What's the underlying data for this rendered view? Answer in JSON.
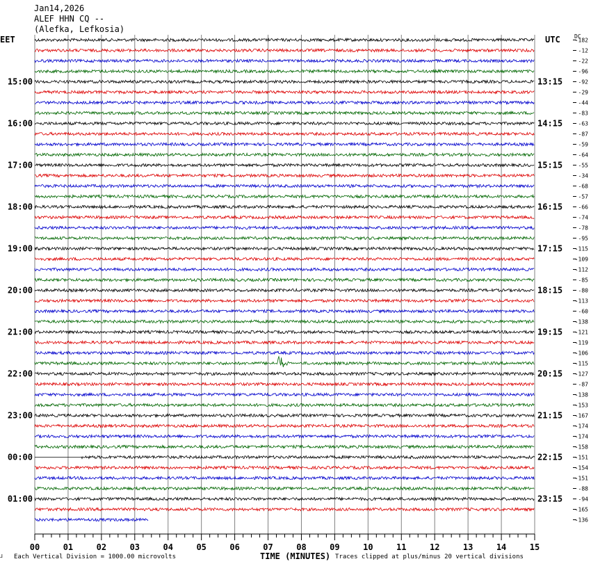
{
  "header": {
    "date": "Jan14,2026",
    "station": "ALEF HHN CQ --",
    "location": "(Alefka, Lefkosia)"
  },
  "labels": {
    "left_zone": "EET",
    "right_zone": "UTC",
    "dc_header": "DC",
    "x_title": "TIME (MINUTES)",
    "scale_note": "Each Vertical Division = 1000.00 microvolts",
    "clip_note": "Traces clipped at plus/minus 20 vertical divisions"
  },
  "colors": {
    "cycle": [
      "#000000",
      "#dd0000",
      "#0000cc",
      "#006600"
    ],
    "grid": "#808080"
  },
  "chart_data": {
    "type": "line",
    "title": "ALEF HHN CQ -- (Alefka, Lefkosia) Jan14,2026",
    "xlabel": "TIME (MINUTES)",
    "xlim": [
      0,
      15
    ],
    "x_ticks": [
      "00",
      "01",
      "02",
      "03",
      "04",
      "05",
      "06",
      "07",
      "08",
      "09",
      "10",
      "11",
      "12",
      "13",
      "14",
      "15"
    ],
    "trace_minutes": 15,
    "left_hour_labels": [
      "15:00",
      "16:00",
      "17:00",
      "18:00",
      "19:00",
      "20:00",
      "21:00",
      "22:00",
      "23:00",
      "00:00",
      "01:00"
    ],
    "right_hour_labels": [
      "13:15",
      "14:15",
      "15:15",
      "16:15",
      "17:15",
      "18:15",
      "19:15",
      "20:15",
      "21:15",
      "22:15",
      "23:15"
    ],
    "dc_offsets": [
      -182,
      -12,
      -22,
      -96,
      -92,
      -29,
      -44,
      -83,
      -63,
      -87,
      -59,
      -64,
      -55,
      -34,
      -68,
      -57,
      -66,
      -74,
      -78,
      -95,
      -115,
      -109,
      -112,
      -85,
      -80,
      -113,
      -60,
      -138,
      -121,
      -119,
      -106,
      -115,
      -127,
      -87,
      -138,
      -153,
      -167,
      -174,
      -174,
      -158,
      -151,
      -154,
      -151,
      -88,
      -94,
      -165,
      -136
    ],
    "partial_last_trace_minutes": 3.4,
    "partial_start_trace": {
      "row": 40,
      "start_minute": 1.4
    },
    "event": {
      "row": 31,
      "minute": 7.3,
      "duration_minutes": 0.6
    }
  }
}
